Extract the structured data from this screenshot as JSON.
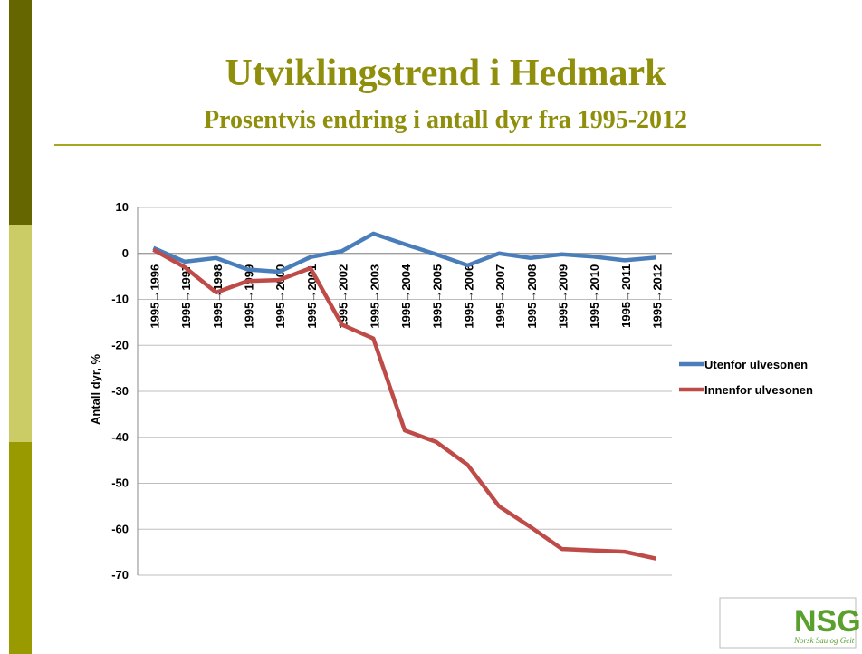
{
  "title": "Utviklingstrend i Hedmark",
  "subtitle": "Prosentvis endring i antall dyr fra 1995-2012",
  "logo": {
    "name": "NSG",
    "tagline": "Norsk Sau og Geit"
  },
  "chart_data": {
    "type": "line",
    "y_label": "Antall dyr, %",
    "categories": [
      "1995→1996",
      "1995→1997",
      "1995→1998",
      "1995→1999",
      "1995→2000",
      "1995→2001",
      "1995→2002",
      "1995→2003",
      "1995→2004",
      "1995→2005",
      "1995→2006",
      "1995→2007",
      "1995→2008",
      "1995→2009",
      "1995→2010",
      "1995→2011",
      "1995→2012"
    ],
    "series": [
      {
        "name": "Utenfor ulvesonen",
        "color": "#4a7ebb",
        "values": [
          1.2,
          -1.8,
          -1,
          -3.5,
          -4,
          -0.8,
          0.5,
          4.3,
          2,
          -0.2,
          -2.6,
          0,
          -1,
          -0.2,
          -0.7,
          -1.5,
          -0.9
        ]
      },
      {
        "name": "Innenfor ulvesonen",
        "color": "#be4b48",
        "values": [
          0.8,
          -3,
          -8.5,
          -6,
          -5.8,
          -3.2,
          -15.5,
          -18.5,
          -38.5,
          -41,
          -46,
          -55,
          -59.5,
          -64.3,
          -64.6,
          -64.9,
          -66.4
        ]
      }
    ],
    "ylim": [
      -70,
      10
    ],
    "yticks": [
      10,
      0,
      -10,
      -20,
      -30,
      -40,
      -50,
      -60,
      -70
    ],
    "grid": true,
    "legend": "right"
  }
}
